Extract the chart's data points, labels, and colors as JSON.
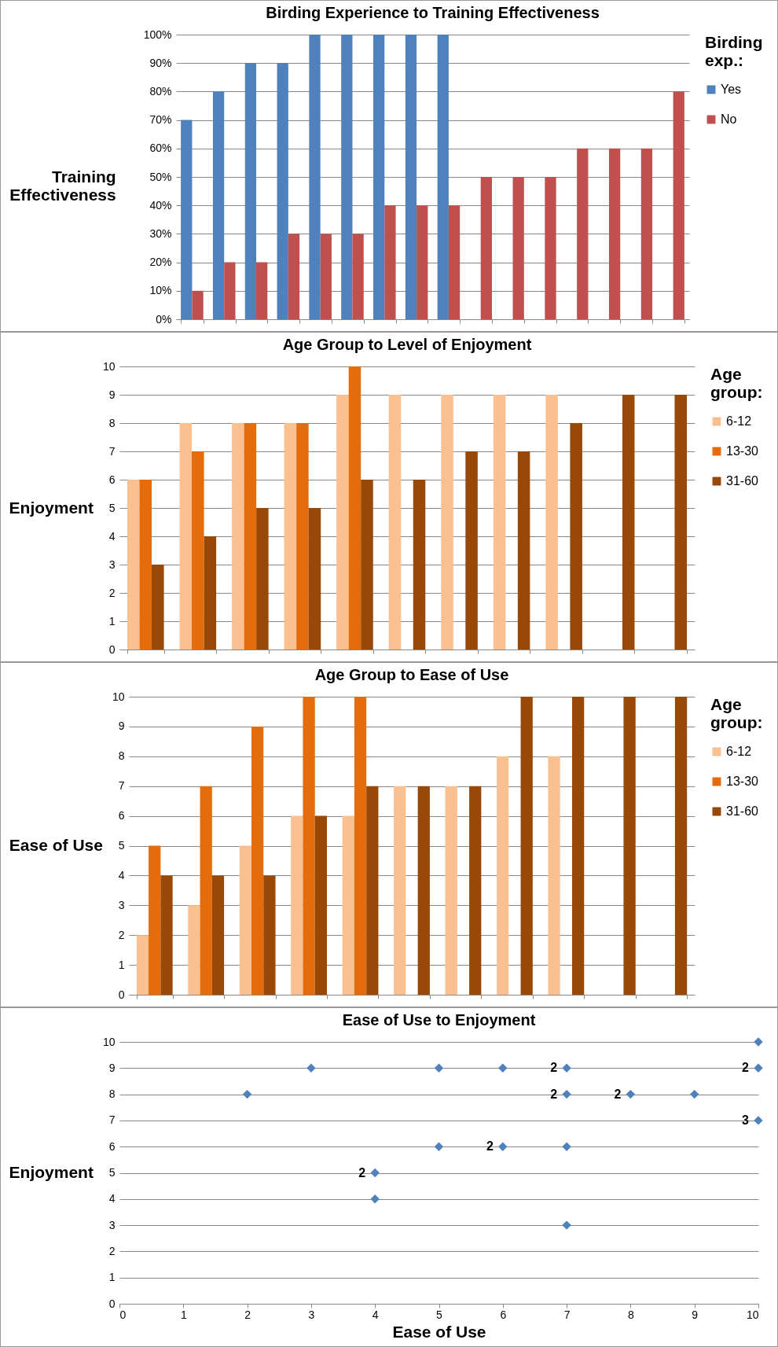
{
  "chart_data": [
    {
      "type": "bar",
      "title": "Birding Experience to Training Effectiveness",
      "ylabel": "Training Effectiveness",
      "legend_title": "Birding exp.:",
      "legend": "right",
      "grid": "y",
      "categories": [
        null,
        null,
        null,
        null,
        null,
        null,
        null,
        null,
        null,
        null,
        null,
        null,
        null,
        null,
        null,
        null
      ],
      "series": [
        {
          "name": "Yes",
          "color": "#4f81bd",
          "values": [
            70,
            80,
            90,
            90,
            100,
            100,
            100,
            100,
            100,
            null,
            null,
            null,
            null,
            null,
            null,
            null
          ]
        },
        {
          "name": "No",
          "color": "#c0504d",
          "values": [
            10,
            20,
            20,
            30,
            30,
            30,
            40,
            40,
            40,
            50,
            50,
            50,
            60,
            60,
            60,
            80
          ]
        }
      ],
      "ylim": [
        0,
        100
      ],
      "yticks": [
        {
          "value": 0,
          "label": "0%"
        },
        {
          "value": 10,
          "label": "10%"
        },
        {
          "value": 20,
          "label": "20%"
        },
        {
          "value": 30,
          "label": "30%"
        },
        {
          "value": 40,
          "label": "40%"
        },
        {
          "value": 50,
          "label": "50%"
        },
        {
          "value": 60,
          "label": "60%"
        },
        {
          "value": 70,
          "label": "70%"
        },
        {
          "value": 80,
          "label": "80%"
        },
        {
          "value": 90,
          "label": "90%"
        },
        {
          "value": 100,
          "label": "100%"
        }
      ]
    },
    {
      "type": "bar",
      "title": "Age Group to Level of Enjoyment",
      "ylabel": "Enjoyment",
      "legend_title": "Age group:",
      "legend": "right",
      "grid": "y",
      "categories": [
        null,
        null,
        null,
        null,
        null,
        null,
        null,
        null,
        null,
        null,
        null
      ],
      "series": [
        {
          "name": "6-12",
          "color": "#fac090",
          "values": [
            6,
            8,
            8,
            8,
            9,
            9,
            9,
            9,
            9,
            null,
            null
          ]
        },
        {
          "name": "13-30",
          "color": "#e46c0a",
          "values": [
            6,
            7,
            8,
            8,
            10,
            null,
            null,
            null,
            null,
            null,
            null
          ]
        },
        {
          "name": "31-60",
          "color": "#984807",
          "values": [
            3,
            4,
            5,
            5,
            6,
            6,
            7,
            7,
            8,
            9,
            9
          ]
        }
      ],
      "ylim": [
        0,
        10
      ],
      "yticks": [
        0,
        1,
        2,
        3,
        4,
        5,
        6,
        7,
        8,
        9,
        10
      ]
    },
    {
      "type": "bar",
      "title": "Age Group to Ease of Use",
      "ylabel": "Ease of Use",
      "legend_title": "Age group:",
      "legend": "right",
      "grid": "y",
      "categories": [
        null,
        null,
        null,
        null,
        null,
        null,
        null,
        null,
        null,
        null,
        null
      ],
      "series": [
        {
          "name": "6-12",
          "color": "#fac090",
          "values": [
            2,
            3,
            5,
            6,
            6,
            7,
            7,
            8,
            8,
            null,
            null
          ]
        },
        {
          "name": "13-30",
          "color": "#e46c0a",
          "values": [
            5,
            7,
            9,
            10,
            10,
            null,
            null,
            null,
            null,
            null,
            null
          ]
        },
        {
          "name": "31-60",
          "color": "#984807",
          "values": [
            4,
            4,
            4,
            6,
            7,
            7,
            7,
            10,
            10,
            10,
            10
          ]
        }
      ],
      "ylim": [
        0,
        10
      ],
      "yticks": [
        0,
        1,
        2,
        3,
        4,
        5,
        6,
        7,
        8,
        9,
        10
      ]
    },
    {
      "type": "scatter",
      "title": "Ease of Use to Enjoyment",
      "xlabel": "Ease of Use",
      "ylabel": "Enjoyment",
      "grid": "y",
      "marker": "diamond",
      "series": [
        {
          "color": "#4f81bd",
          "x": [
            10,
            3,
            5,
            6,
            7,
            10,
            2,
            7,
            8,
            9,
            10,
            5,
            6,
            7,
            4,
            4,
            7
          ],
          "values": [
            10,
            9,
            9,
            9,
            9,
            9,
            8,
            8,
            8,
            8,
            7,
            6,
            6,
            6,
            5,
            4,
            3
          ]
        }
      ],
      "xlim": [
        0,
        10
      ],
      "xticks": [
        0,
        1,
        2,
        3,
        4,
        5,
        6,
        7,
        8,
        9,
        10
      ],
      "ylim": [
        0,
        10
      ],
      "yticks": [
        0,
        1,
        2,
        3,
        4,
        5,
        6,
        7,
        8,
        9,
        10
      ],
      "annotations": [
        {
          "text": "2",
          "x": 7,
          "y": 9
        },
        {
          "text": "2",
          "x": 10,
          "y": 9
        },
        {
          "text": "2",
          "x": 7,
          "y": 8
        },
        {
          "text": "2",
          "x": 8,
          "y": 8
        },
        {
          "text": "3",
          "x": 10,
          "y": 7
        },
        {
          "text": "2",
          "x": 6,
          "y": 6
        },
        {
          "text": "2",
          "x": 4,
          "y": 5
        }
      ]
    }
  ]
}
